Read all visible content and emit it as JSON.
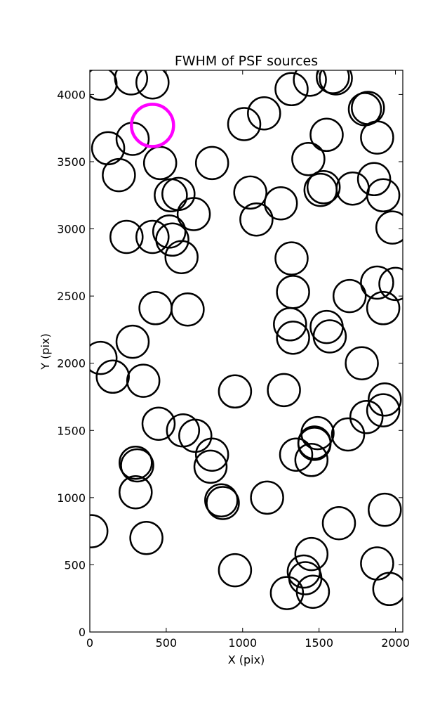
{
  "chart_data": {
    "type": "scatter",
    "title": "FWHM of PSF sources",
    "xlabel": "X (pix)",
    "ylabel": "Y (pix)",
    "xlim": [
      0,
      2048
    ],
    "ylim": [
      0,
      4180
    ],
    "xticks": [
      "0",
      "500",
      "1000",
      "1500",
      "2000"
    ],
    "yticks": [
      "0",
      "500",
      "1000",
      "1500",
      "2000",
      "2500",
      "3000",
      "3500",
      "4000"
    ],
    "grid": false,
    "marker": "open-circle",
    "colors": {
      "default": "#000000",
      "highlight": "#ff00ff"
    },
    "series": [
      {
        "points": [
          [
            70,
            4080
          ],
          [
            270,
            4120
          ],
          [
            410,
            4090
          ],
          [
            280,
            3670
          ],
          [
            120,
            3600
          ],
          [
            190,
            3400
          ],
          [
            460,
            3490
          ],
          [
            800,
            3490
          ],
          [
            530,
            3250
          ],
          [
            580,
            3260
          ],
          [
            680,
            3110
          ],
          [
            240,
            2940
          ],
          [
            410,
            2940
          ],
          [
            520,
            2980
          ],
          [
            540,
            2920
          ],
          [
            600,
            2790
          ],
          [
            430,
            2410
          ],
          [
            640,
            2400
          ],
          [
            1010,
            3780
          ],
          [
            1140,
            3860
          ],
          [
            1050,
            3270
          ],
          [
            1090,
            3070
          ],
          [
            1250,
            3190
          ],
          [
            1320,
            4040
          ],
          [
            1440,
            4110
          ],
          [
            1610,
            4120
          ],
          [
            1590,
            4130
          ],
          [
            1430,
            3520
          ],
          [
            1550,
            3700
          ],
          [
            1530,
            3310
          ],
          [
            1510,
            3290
          ],
          [
            1720,
            3300
          ],
          [
            1860,
            3370
          ],
          [
            1920,
            3250
          ],
          [
            1800,
            3890
          ],
          [
            1820,
            3900
          ],
          [
            1880,
            3680
          ],
          [
            1980,
            3010
          ],
          [
            1320,
            2780
          ],
          [
            1330,
            2530
          ],
          [
            1700,
            2500
          ],
          [
            1880,
            2600
          ],
          [
            2000,
            2590
          ],
          [
            1920,
            2410
          ],
          [
            1310,
            2290
          ],
          [
            1330,
            2190
          ],
          [
            1550,
            2270
          ],
          [
            1570,
            2200
          ],
          [
            1780,
            2000
          ],
          [
            280,
            2160
          ],
          [
            70,
            2040
          ],
          [
            150,
            1900
          ],
          [
            350,
            1870
          ],
          [
            950,
            1790
          ],
          [
            1270,
            1800
          ],
          [
            450,
            1550
          ],
          [
            610,
            1500
          ],
          [
            690,
            1460
          ],
          [
            800,
            1320
          ],
          [
            790,
            1230
          ],
          [
            300,
            1260
          ],
          [
            310,
            1240
          ],
          [
            300,
            1040
          ],
          [
            860,
            980
          ],
          [
            870,
            960
          ],
          [
            1160,
            1000
          ],
          [
            1490,
            1480
          ],
          [
            1470,
            1410
          ],
          [
            1470,
            1400
          ],
          [
            1450,
            1280
          ],
          [
            1350,
            1320
          ],
          [
            1690,
            1470
          ],
          [
            1810,
            1600
          ],
          [
            1920,
            1650
          ],
          [
            1930,
            1730
          ],
          [
            1930,
            910
          ],
          [
            370,
            700
          ],
          [
            10,
            750
          ],
          [
            1630,
            810
          ],
          [
            950,
            460
          ],
          [
            1450,
            580
          ],
          [
            1400,
            450
          ],
          [
            1410,
            400
          ],
          [
            1290,
            290
          ],
          [
            1460,
            300
          ],
          [
            1880,
            510
          ],
          [
            1960,
            320
          ]
        ]
      },
      {
        "points": [
          [
            410,
            3770
          ]
        ]
      }
    ]
  }
}
